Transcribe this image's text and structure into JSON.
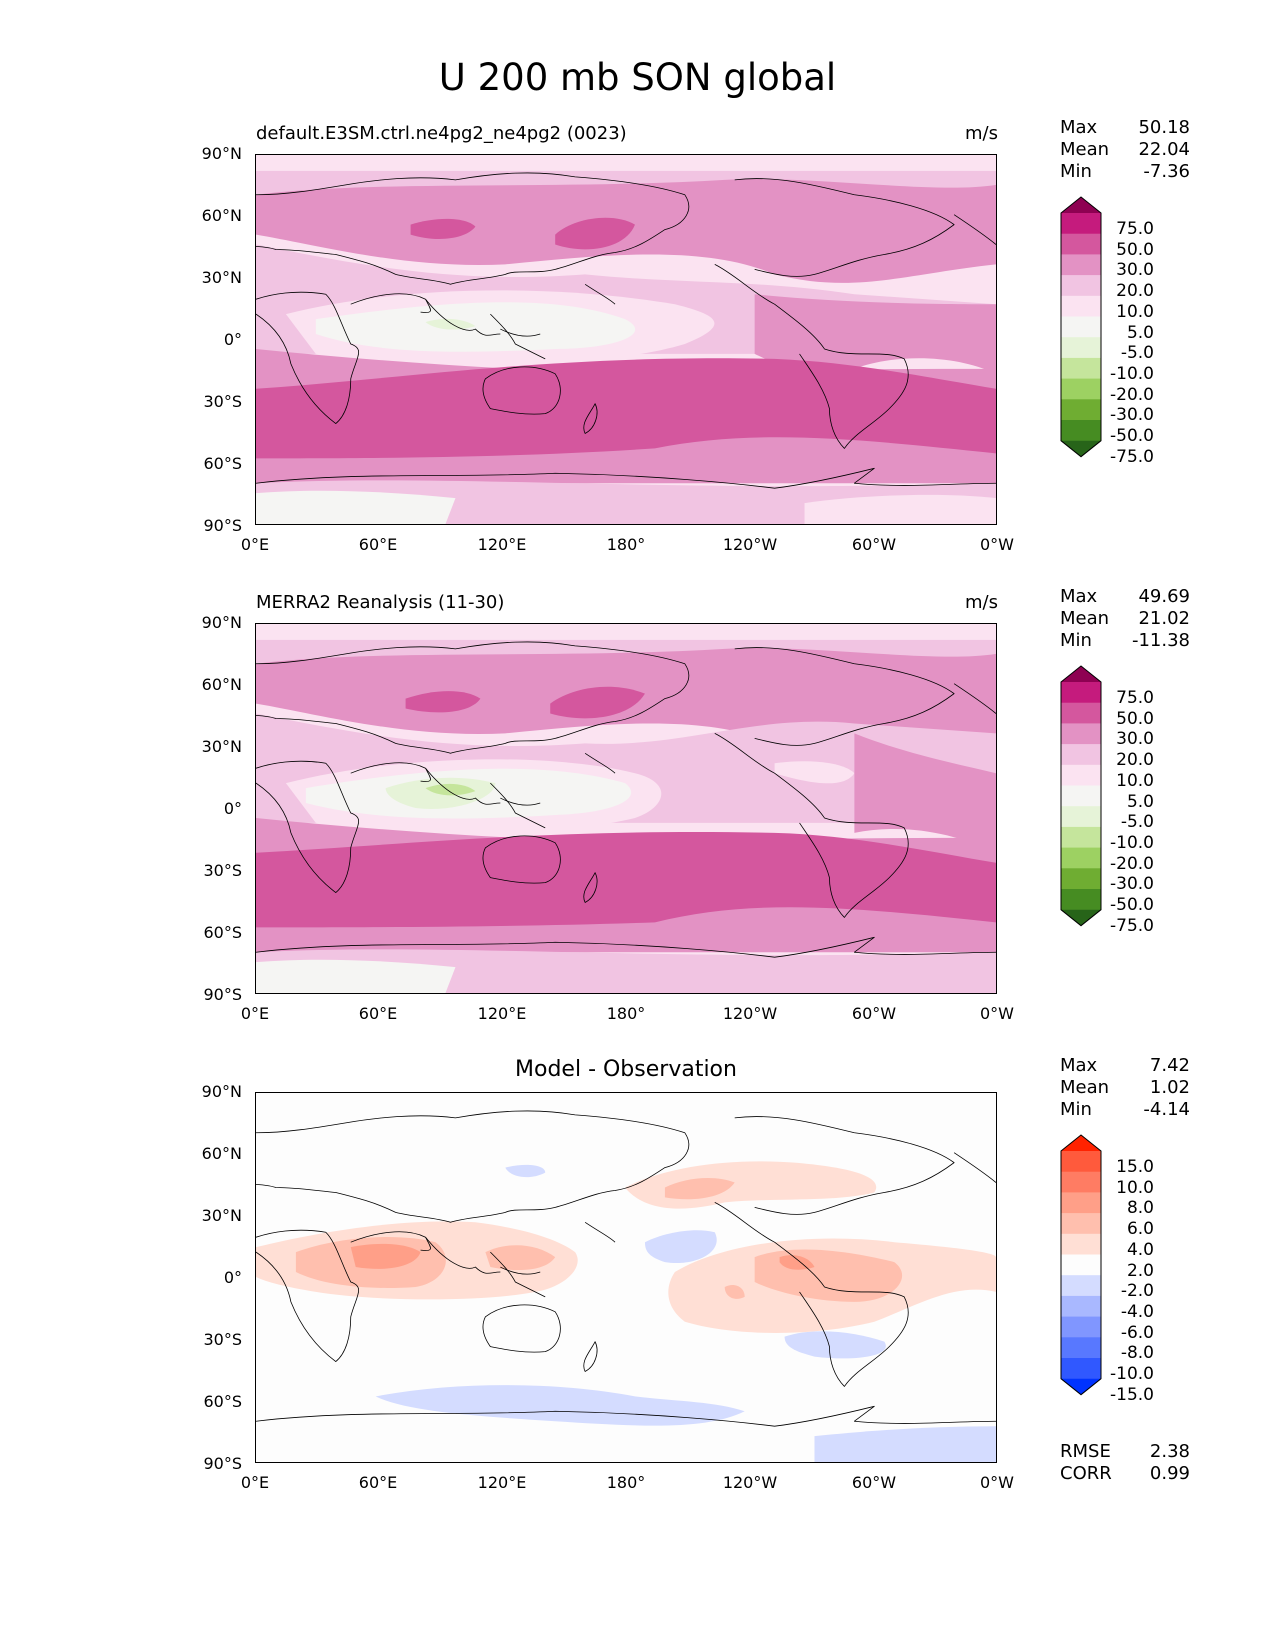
{
  "figure": {
    "title": "U 200 mb SON global",
    "units": "m/s",
    "x_ticks": [
      "0°E",
      "60°E",
      "120°E",
      "180°",
      "120°W",
      "60°W",
      "0°W"
    ],
    "y_ticks": [
      "90°N",
      "60°N",
      "30°N",
      "0°",
      "30°S",
      "60°S",
      "90°S"
    ]
  },
  "panels": [
    {
      "id": "model",
      "title": "default.E3SM.ctrl.ne4pg2_ne4pg2 (0023)",
      "units": "m/s",
      "stats": {
        "max_label": "Max",
        "max": "50.18",
        "mean_label": "Mean",
        "mean": "22.04",
        "min_label": "Min",
        "min": "-7.36"
      },
      "colorbar": {
        "levels": [
          "75.0",
          "50.0",
          "30.0",
          "20.0",
          "10.0",
          "5.0",
          "-5.0",
          "-10.0",
          "-20.0",
          "-30.0",
          "-50.0",
          "-75.0"
        ],
        "colors": [
          "#8e0152",
          "#c51b7d",
          "#d4579e",
          "#e392c4",
          "#f1c4e2",
          "#fbe3f1",
          "#f5f5f3",
          "#e6f3d8",
          "#c5e59c",
          "#9dd162",
          "#6fad32",
          "#468c22",
          "#276419"
        ]
      }
    },
    {
      "id": "obs",
      "title": "MERRA2 Reanalysis (11-30)",
      "units": "m/s",
      "stats": {
        "max_label": "Max",
        "max": "49.69",
        "mean_label": "Mean",
        "mean": "21.02",
        "min_label": "Min",
        "min": "-11.38"
      },
      "colorbar": {
        "levels": [
          "75.0",
          "50.0",
          "30.0",
          "20.0",
          "10.0",
          "5.0",
          "-5.0",
          "-10.0",
          "-20.0",
          "-30.0",
          "-50.0",
          "-75.0"
        ],
        "colors": [
          "#8e0152",
          "#c51b7d",
          "#d4579e",
          "#e392c4",
          "#f1c4e2",
          "#fbe3f1",
          "#f5f5f3",
          "#e6f3d8",
          "#c5e59c",
          "#9dd162",
          "#6fad32",
          "#468c22",
          "#276419"
        ]
      }
    },
    {
      "id": "diff",
      "title": "Model - Observation",
      "units": "",
      "stats": {
        "max_label": "Max",
        "max": "7.42",
        "mean_label": "Mean",
        "mean": "1.02",
        "min_label": "Min",
        "min": "-4.14"
      },
      "colorbar": {
        "levels": [
          "15.0",
          "10.0",
          "8.0",
          "6.0",
          "4.0",
          "2.0",
          "-2.0",
          "-4.0",
          "-6.0",
          "-8.0",
          "-10.0",
          "-15.0"
        ],
        "colors": [
          "#ff2200",
          "#ff5a3c",
          "#ff7c63",
          "#ff9f88",
          "#ffbfae",
          "#ffdfd5",
          "#fdfdfd",
          "#d4dcff",
          "#a9b8ff",
          "#8096ff",
          "#5878ff",
          "#3058ff",
          "#0033ff"
        ]
      },
      "metrics": {
        "rmse_label": "RMSE",
        "rmse": "2.38",
        "corr_label": "CORR",
        "corr": "0.99"
      }
    }
  ]
}
